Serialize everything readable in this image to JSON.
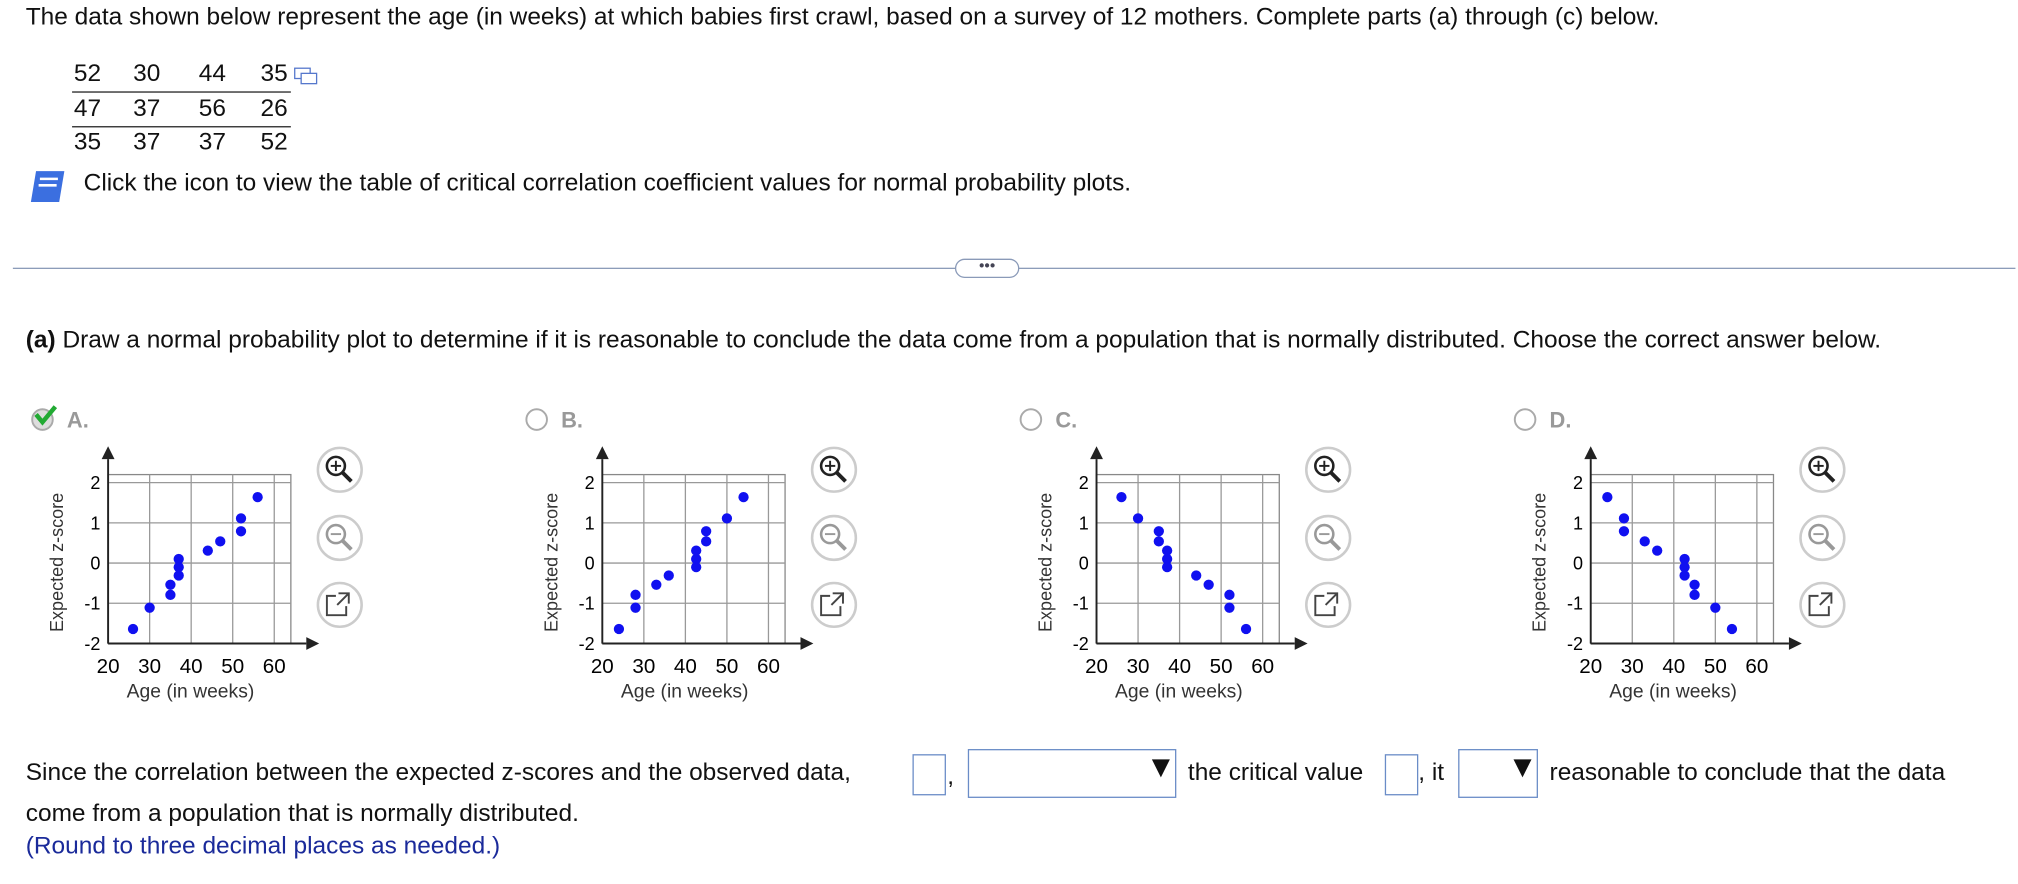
{
  "question": "The data shown below represent the age (in weeks) at which babies first crawl, based on a survey of 12 mothers. Complete parts (a) through (c) below.",
  "table": {
    "rows": [
      [
        52,
        30,
        44,
        35
      ],
      [
        47,
        37,
        56,
        26
      ],
      [
        35,
        37,
        37,
        52
      ]
    ]
  },
  "icon_text": "Click the icon to view the table of critical correlation coefficient values for normal probability plots.",
  "part_a": {
    "label": "(a)",
    "text": "Draw a normal probability plot to determine if it is reasonable to conclude the data come from a population that is normally distributed. Choose the correct answer below."
  },
  "options": [
    {
      "label": "A.",
      "selected": true,
      "plot": {
        "type": "scatter",
        "xlabel": "Age (in weeks)",
        "ylabel": "Expected z-score",
        "color": "#1010f0",
        "xlim": [
          20,
          64
        ],
        "ylim": [
          -2,
          2.2
        ],
        "xticks": [
          20,
          30,
          40,
          50,
          60
        ],
        "yticks": [
          -2,
          -1,
          0,
          1,
          2
        ],
        "x": [
          26,
          30,
          35,
          35,
          37,
          37,
          37,
          44,
          47,
          52,
          52,
          56
        ],
        "y": [
          -1.64,
          -1.11,
          -0.79,
          -0.54,
          -0.31,
          -0.1,
          0.1,
          0.31,
          0.54,
          0.79,
          1.11,
          1.64
        ]
      }
    },
    {
      "label": "B.",
      "selected": false,
      "plot": {
        "type": "scatter",
        "xlabel": "Age (in weeks)",
        "ylabel": "Expected z-score",
        "color": "#1010f0",
        "xlim": [
          20,
          64
        ],
        "ylim": [
          -2,
          2.2
        ],
        "xticks": [
          20,
          30,
          40,
          50,
          60
        ],
        "yticks": [
          -2,
          -1,
          0,
          1,
          2
        ],
        "x": [
          24,
          28,
          28,
          33,
          36,
          42.6,
          42.6,
          42.6,
          45,
          45,
          50,
          54
        ],
        "y": [
          -1.64,
          -1.11,
          -0.79,
          -0.54,
          -0.31,
          -0.1,
          0.1,
          0.31,
          0.54,
          0.79,
          1.11,
          1.64
        ]
      }
    },
    {
      "label": "C.",
      "selected": false,
      "plot": {
        "type": "scatter",
        "xlabel": "Age (in weeks)",
        "ylabel": "Expected z-score",
        "color": "#1010f0",
        "xlim": [
          20,
          64
        ],
        "ylim": [
          -2,
          2.2
        ],
        "xticks": [
          20,
          30,
          40,
          50,
          60
        ],
        "yticks": [
          -2,
          -1,
          0,
          1,
          2
        ],
        "x": [
          26,
          30,
          35,
          35,
          37,
          37,
          37,
          44,
          47,
          52,
          52,
          56
        ],
        "y": [
          1.64,
          1.11,
          0.79,
          0.54,
          0.31,
          0.1,
          -0.1,
          -0.31,
          -0.54,
          -0.79,
          -1.11,
          -1.64
        ]
      }
    },
    {
      "label": "D.",
      "selected": false,
      "plot": {
        "type": "scatter",
        "xlabel": "Age (in weeks)",
        "ylabel": "Expected z-score",
        "color": "#1010f0",
        "xlim": [
          20,
          64
        ],
        "ylim": [
          -2,
          2.2
        ],
        "xticks": [
          20,
          30,
          40,
          50,
          60
        ],
        "yticks": [
          -2,
          -1,
          0,
          1,
          2
        ],
        "x": [
          24,
          28,
          28,
          33,
          36,
          42.6,
          42.6,
          42.6,
          45,
          45,
          50,
          54
        ],
        "y": [
          1.64,
          1.11,
          0.79,
          0.54,
          0.31,
          0.1,
          -0.1,
          -0.31,
          -0.54,
          -0.79,
          -1.11,
          -1.64
        ]
      }
    }
  ],
  "answer": {
    "text_1": "Since the correlation between the expected z-scores and the observed data,",
    "separator": ",",
    "text_2": "the critical value",
    "text_3": ", it",
    "text_4": "reasonable to conclude that the data",
    "text_5": "come from a population that is normally distributed.",
    "hint": "(Round to three decimal places as needed.)"
  }
}
